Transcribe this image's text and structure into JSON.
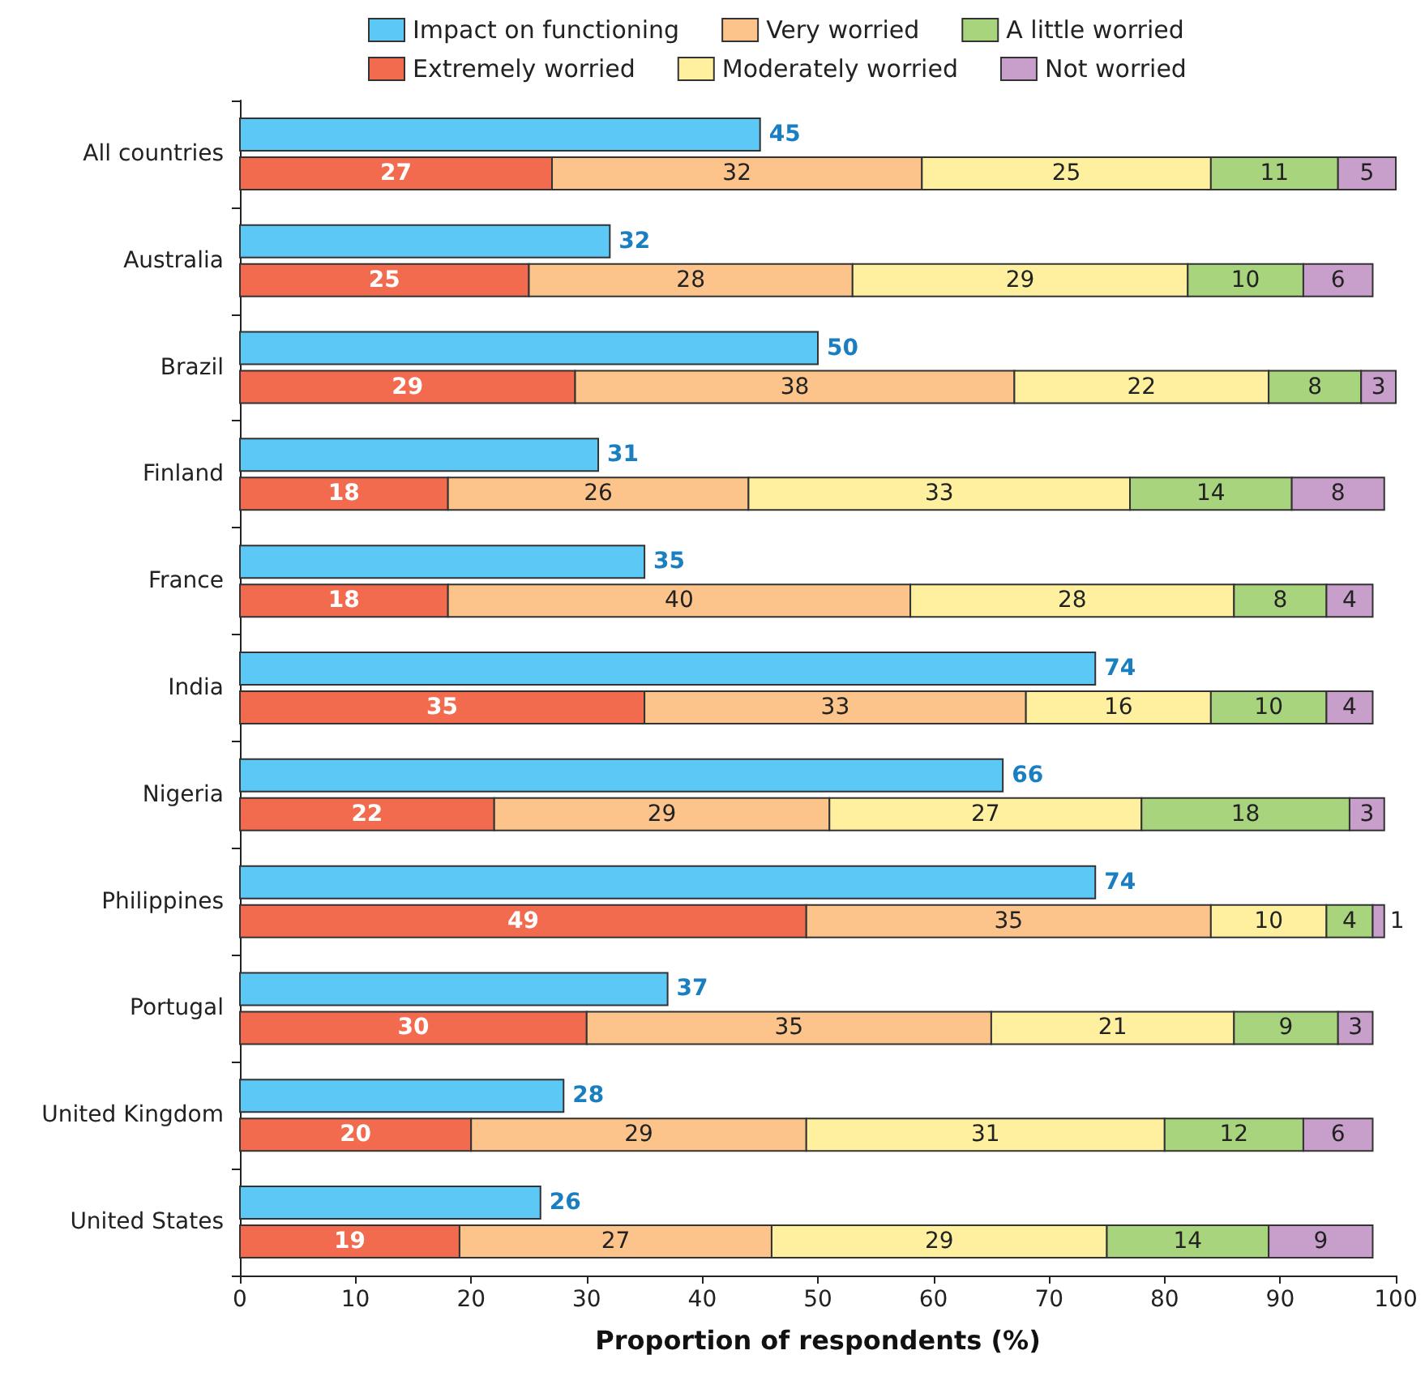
{
  "chart_data": {
    "type": "bar",
    "orientation": "horizontal",
    "data_labels": true,
    "legend": "top",
    "grid": false,
    "xlabel": "Proportion of respondents (%)",
    "xlim": [
      0,
      100
    ],
    "xticks": [
      0,
      10,
      20,
      30,
      40,
      50,
      60,
      70,
      80,
      90,
      100
    ],
    "categories": [
      "All countries",
      "Australia",
      "Brazil",
      "Finland",
      "France",
      "India",
      "Nigeria",
      "Philippines",
      "Portugal",
      "United Kingdom",
      "United States"
    ],
    "series": [
      {
        "name": "Impact on functioning",
        "color": "#5bc8f5",
        "values": [
          45,
          32,
          50,
          31,
          35,
          74,
          66,
          74,
          37,
          28,
          26
        ]
      },
      {
        "name": "Extremely worried",
        "color": "#f26b4f",
        "values": [
          27,
          25,
          29,
          18,
          18,
          35,
          22,
          49,
          30,
          20,
          19
        ],
        "base": [
          0,
          0,
          0,
          0,
          0,
          0,
          0,
          0,
          0,
          0,
          0
        ]
      },
      {
        "name": "Very worried",
        "color": "#fcc48a",
        "values": [
          32,
          28,
          38,
          26,
          40,
          33,
          29,
          35,
          35,
          29,
          27
        ],
        "base": [
          27,
          25,
          29,
          18,
          18,
          35,
          22,
          49,
          30,
          20,
          19
        ]
      },
      {
        "name": "Moderately worried",
        "color": "#fff0a0",
        "values": [
          25,
          29,
          22,
          33,
          28,
          16,
          27,
          10,
          21,
          31,
          29
        ],
        "base": [
          59,
          53,
          67,
          44,
          58,
          68,
          51,
          84,
          65,
          49,
          46
        ]
      },
      {
        "name": "A little worried",
        "color": "#a9d47e",
        "values": [
          11,
          10,
          8,
          14,
          8,
          10,
          18,
          4,
          9,
          12,
          14
        ],
        "base": [
          84,
          82,
          89,
          77,
          86,
          84,
          78,
          94,
          86,
          80,
          75
        ]
      },
      {
        "name": "Not worried",
        "color": "#c89ecb",
        "values": [
          5,
          6,
          3,
          8,
          4,
          4,
          3,
          1,
          3,
          6,
          9
        ],
        "base": [
          95,
          92,
          97,
          91,
          94,
          94,
          96,
          98,
          95,
          92,
          89
        ]
      }
    ]
  }
}
